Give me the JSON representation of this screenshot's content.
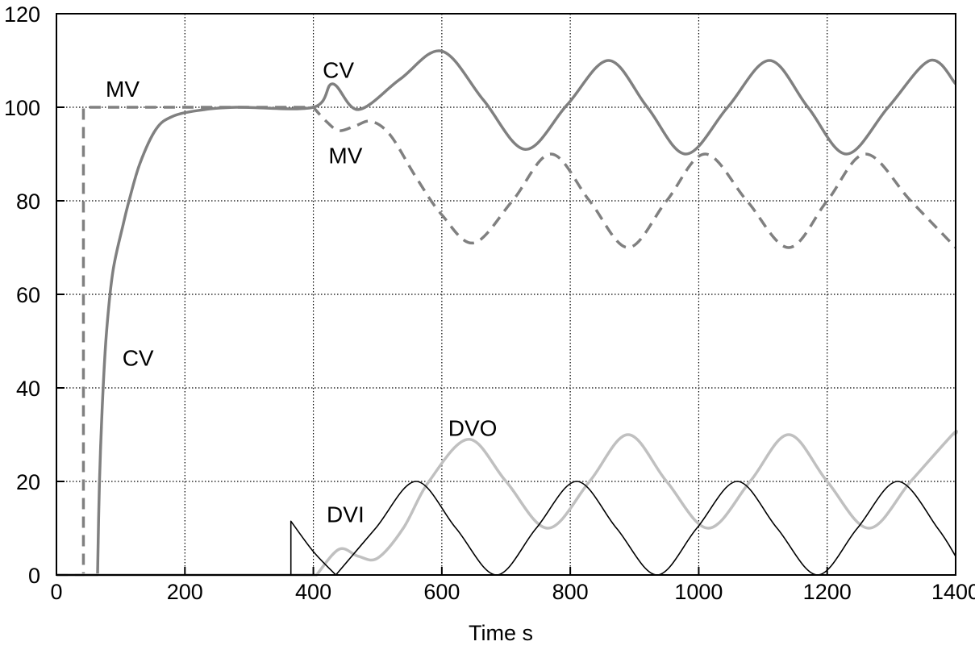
{
  "chart_data": {
    "type": "line",
    "title": "",
    "xlabel": "Time s",
    "ylabel": "",
    "xlim": [
      0,
      1400
    ],
    "ylim": [
      0,
      120
    ],
    "xticks": [
      0,
      200,
      400,
      600,
      800,
      1000,
      1200,
      1400
    ],
    "yticks": [
      0,
      20,
      40,
      60,
      80,
      100,
      120
    ],
    "xtick_labels": [
      "0",
      "200",
      "400",
      "600",
      "800",
      "1000",
      "1200",
      "1400"
    ],
    "ytick_labels": [
      "0",
      "20",
      "40",
      "60",
      "80",
      "100",
      "120"
    ],
    "grid": true,
    "series": [
      {
        "name": "MV",
        "color": "#808080",
        "style": "dashed",
        "segments": [
          [
            [
              0,
              0
            ],
            [
              42,
              0
            ]
          ],
          [
            [
              42,
              100
            ],
            [
              400,
              100
            ]
          ],
          [
            [
              400,
              100
            ],
            [
              420,
              97
            ],
            [
              440,
              95
            ],
            [
              465,
              96
            ],
            [
              490,
              97
            ],
            [
              520,
              94
            ],
            [
              560,
              85
            ],
            [
              600,
              77
            ],
            [
              650,
              71
            ],
            [
              710,
              80
            ],
            [
              770,
              90
            ],
            [
              830,
              80
            ],
            [
              890,
              70
            ],
            [
              950,
              80
            ],
            [
              1010,
              90
            ],
            [
              1075,
              80
            ],
            [
              1140,
              70
            ],
            [
              1200,
              80
            ],
            [
              1260,
              90
            ],
            [
              1330,
              80
            ],
            [
              1400,
              70
            ]
          ]
        ]
      },
      {
        "name": "CV",
        "color": "#808080",
        "style": "solid",
        "segments": [
          [
            [
              0,
              0
            ],
            [
              64,
              0
            ]
          ],
          [
            [
              64,
              0
            ],
            [
              67,
              20
            ],
            [
              72,
              38
            ],
            [
              78,
              52
            ],
            [
              88,
              65
            ],
            [
              104,
              75
            ],
            [
              113,
              80
            ],
            [
              130,
              88
            ],
            [
              155,
              95.3
            ],
            [
              180,
              98
            ],
            [
              220,
              99.3
            ],
            [
              280,
              100
            ],
            [
              400,
              100
            ],
            [
              430,
              105
            ],
            [
              470,
              99.5
            ],
            [
              535,
              106
            ],
            [
              600,
              112
            ],
            [
              665,
              101.5
            ],
            [
              730,
              91
            ],
            [
              795,
              100.5
            ],
            [
              860,
              110
            ],
            [
              920,
              100
            ],
            [
              980,
              90
            ],
            [
              1045,
              100
            ],
            [
              1110,
              110
            ],
            [
              1170,
              100
            ],
            [
              1230,
              90
            ],
            [
              1295,
              100
            ],
            [
              1360,
              110
            ],
            [
              1400,
              105
            ]
          ]
        ]
      },
      {
        "name": "DVO",
        "color": "#c0c0c0",
        "style": "solid",
        "segments": [
          [
            [
              0,
              0
            ],
            [
              405,
              0
            ]
          ],
          [
            [
              405,
              0
            ],
            [
              440,
              5.5
            ],
            [
              470,
              4
            ],
            [
              500,
              3.6
            ],
            [
              540,
              10
            ],
            [
              580,
              20
            ],
            [
              642,
              29
            ],
            [
              700,
              20
            ],
            [
              765,
              10
            ],
            [
              830,
              20
            ],
            [
              890,
              30
            ],
            [
              950,
              20
            ],
            [
              1015,
              10
            ],
            [
              1080,
              20
            ],
            [
              1140,
              30
            ],
            [
              1200,
              20
            ],
            [
              1265,
              10
            ],
            [
              1330,
              20
            ],
            [
              1395,
              30
            ],
            [
              1400,
              30
            ]
          ]
        ]
      },
      {
        "name": "DVI",
        "color": "#000000",
        "style": "thin",
        "segments": [
          [
            [
              0,
              0
            ],
            [
              365,
              0
            ]
          ],
          [
            [
              365,
              11.5
            ],
            [
              400,
              5
            ],
            [
              435,
              0
            ]
          ],
          [
            [
              435,
              0
            ],
            [
              497,
              10
            ],
            [
              560,
              20
            ],
            [
              622,
              10
            ],
            [
              685,
              0
            ],
            [
              747,
              10
            ],
            [
              810,
              20
            ],
            [
              872,
              10
            ],
            [
              935,
              0
            ],
            [
              997,
              10
            ],
            [
              1060,
              20
            ],
            [
              1122,
              10
            ],
            [
              1185,
              0
            ],
            [
              1247,
              10
            ],
            [
              1310,
              20
            ],
            [
              1372,
              10
            ],
            [
              1400,
              4
            ]
          ]
        ]
      }
    ],
    "annotations": [
      {
        "text": "MV",
        "x": 103,
        "y": 104
      },
      {
        "text": "CV",
        "x": 127,
        "y": 46.5
      },
      {
        "text": "CV",
        "x": 439,
        "y": 108
      },
      {
        "text": "MV",
        "x": 450,
        "y": 89.7
      },
      {
        "text": "DVO",
        "x": 648,
        "y": 31.5
      },
      {
        "text": "DVI",
        "x": 450,
        "y": 13
      }
    ]
  }
}
